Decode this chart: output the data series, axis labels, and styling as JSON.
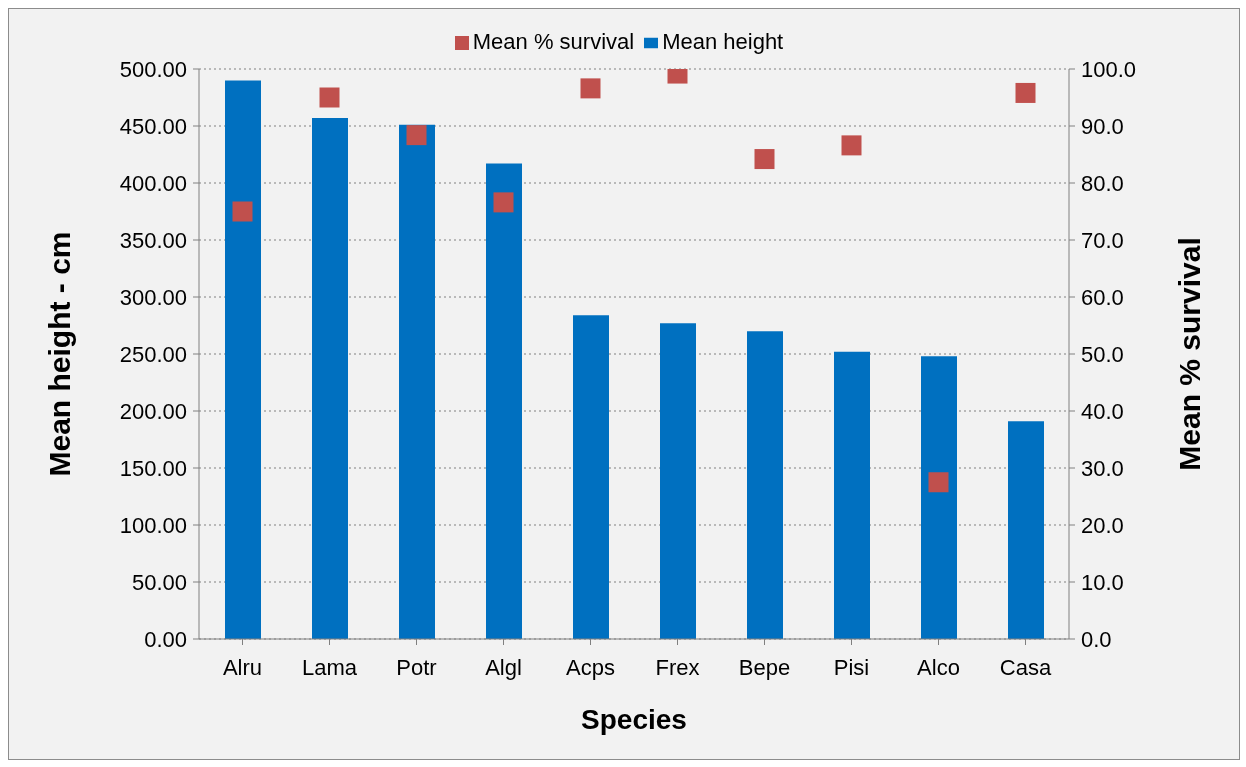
{
  "chart_data": {
    "type": "bar",
    "xlabel": "Species",
    "ylabel": "Mean height - cm",
    "y2label": "Mean % survival",
    "categories": [
      "Alru",
      "Lama",
      "Potr",
      "Algl",
      "Acps",
      "Frex",
      "Bepe",
      "Pisi",
      "Alco",
      "Casa"
    ],
    "series": [
      {
        "name": "Mean height",
        "color": "#0070c0",
        "values": [
          490,
          457,
          451,
          417,
          284,
          277,
          270,
          252,
          248,
          191
        ]
      },
      {
        "name": "Mean % survival",
        "type": "scatter",
        "axis": "y2",
        "color": "#c0504d",
        "values": [
          75.0,
          95.0,
          88.4,
          76.6,
          96.6,
          99.2,
          84.2,
          86.6,
          27.5,
          95.8
        ]
      }
    ],
    "ylim": [
      0,
      500
    ],
    "yticks": [
      {
        "value": 0,
        "label": "0.00"
      },
      {
        "value": 50,
        "label": "50.00"
      },
      {
        "value": 100,
        "label": "100.00"
      },
      {
        "value": 150,
        "label": "150.00"
      },
      {
        "value": 200,
        "label": "200.00"
      },
      {
        "value": 250,
        "label": "250.00"
      },
      {
        "value": 300,
        "label": "300.00"
      },
      {
        "value": 350,
        "label": "350.00"
      },
      {
        "value": 400,
        "label": "400.00"
      },
      {
        "value": 450,
        "label": "450.00"
      },
      {
        "value": 500,
        "label": "500.00"
      }
    ],
    "y2lim": [
      0,
      100
    ],
    "y2ticks": [
      {
        "value": 0,
        "label": "0.0"
      },
      {
        "value": 10,
        "label": "10.0"
      },
      {
        "value": 20,
        "label": "20.0"
      },
      {
        "value": 30,
        "label": "30.0"
      },
      {
        "value": 40,
        "label": "40.0"
      },
      {
        "value": 50,
        "label": "50.0"
      },
      {
        "value": 60,
        "label": "60.0"
      },
      {
        "value": 70,
        "label": "70.0"
      },
      {
        "value": 80,
        "label": "80.0"
      },
      {
        "value": 90,
        "label": "90.0"
      },
      {
        "value": 100,
        "label": "100.0"
      }
    ],
    "grid": "y",
    "legend": "top",
    "marker": "square"
  }
}
